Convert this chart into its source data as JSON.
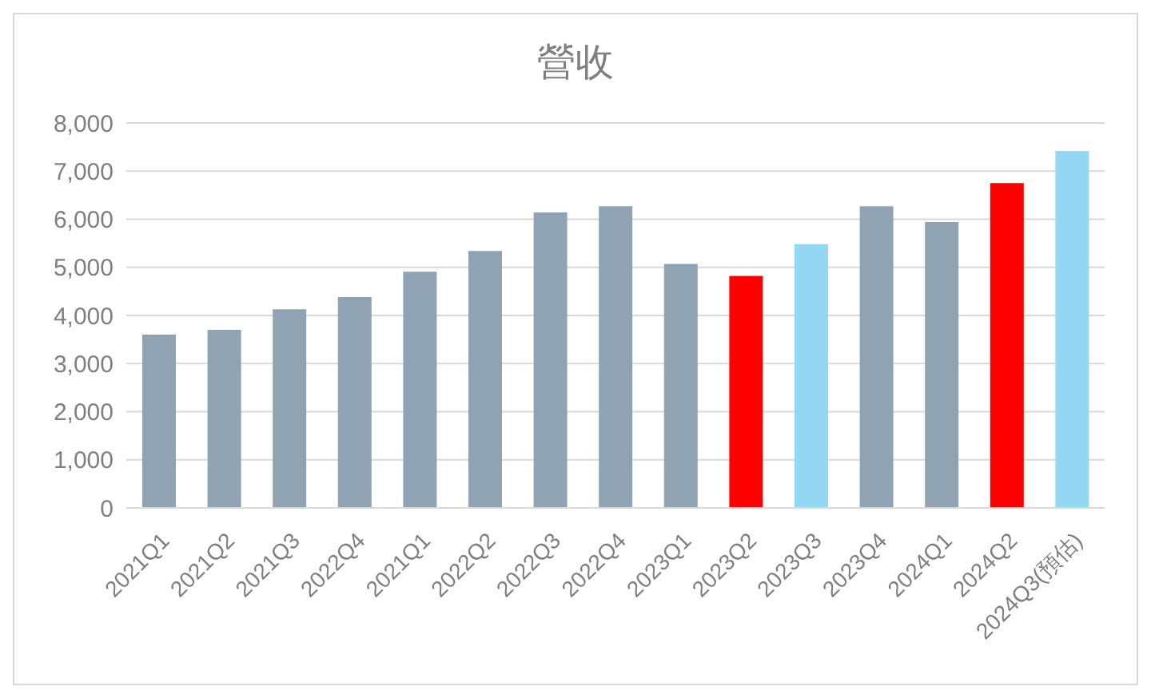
{
  "chart_data": {
    "type": "bar",
    "title": "營收",
    "categories": [
      "2021Q1",
      "2021Q2",
      "2021Q3",
      "2022Q4",
      "2021Q1",
      "2022Q2",
      "2022Q3",
      "2022Q4",
      "2023Q1",
      "2023Q2",
      "2023Q3",
      "2023Q4",
      "2024Q1",
      "2024Q2",
      "2024Q3(預估)"
    ],
    "values": [
      3600,
      3700,
      4130,
      4380,
      4910,
      5340,
      6140,
      6270,
      5070,
      4820,
      5480,
      6270,
      5940,
      6750,
      7420
    ],
    "colors": [
      "#8fa3b3",
      "#8fa3b3",
      "#8fa3b3",
      "#8fa3b3",
      "#8fa3b3",
      "#8fa3b3",
      "#8fa3b3",
      "#8fa3b3",
      "#8fa3b3",
      "#ff0000",
      "#93d7f2",
      "#8fa3b3",
      "#8fa3b3",
      "#ff0000",
      "#93d7f2"
    ],
    "ylim": [
      0,
      8000
    ],
    "yticks": [
      0,
      {
        "value": 1000,
        "label": "1,000"
      },
      {
        "value": 2000,
        "label": "2,000"
      },
      {
        "value": 3000,
        "label": "3,000"
      },
      {
        "value": 4000,
        "label": "4,000"
      },
      {
        "value": 5000,
        "label": "5,000"
      },
      {
        "value": 6000,
        "label": "6,000"
      },
      {
        "value": 7000,
        "label": "7,000"
      },
      {
        "value": 8000,
        "label": "8,000"
      }
    ],
    "grid": "y"
  }
}
